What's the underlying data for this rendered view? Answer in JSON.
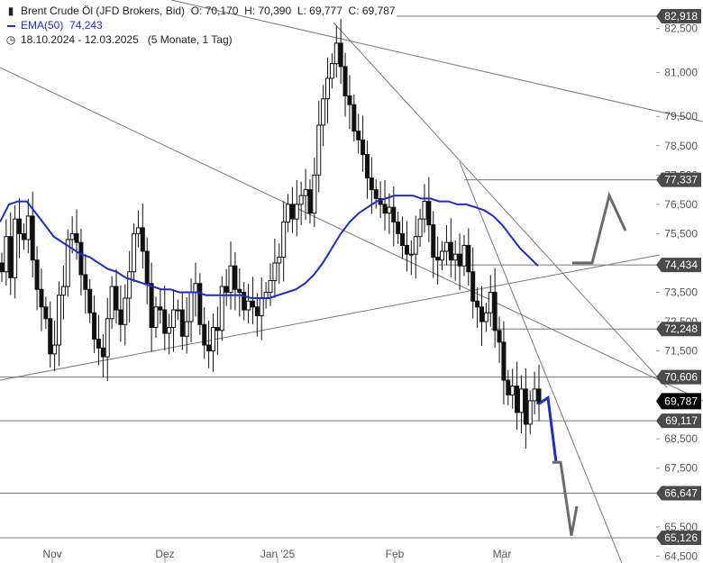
{
  "header": {
    "title": "Brent Crude Öl (JFD Brokers, Bid)",
    "open": "O: 70,170",
    "high": "H: 70,390",
    "low": "L: 69,777",
    "close": "C: 69,787",
    "ema_label": "EMA(50)",
    "ema_value": "74,243",
    "date_range": "18.10.2024 - 12.03.2025",
    "range_info": "(5 Monate, 1 Tag)"
  },
  "colors": {
    "candle": "#111111",
    "ema": "#1a2bd6",
    "trendline": "#777777",
    "projection_blue": "#1a2bd6",
    "projection_gray": "#6b6b6b",
    "badge_bg": "#4a4a4a",
    "last_badge_bg": "#000000"
  },
  "chart_data": {
    "type": "candlestick",
    "title": "Brent Crude Öl (JFD Brokers, Bid)",
    "xlabel": "",
    "ylabel": "",
    "ylim": [
      64.5,
      83.5
    ],
    "grid": false,
    "x_ticks": [
      "Nov",
      "Dez",
      "Jan '25",
      "Feb",
      "Mär"
    ],
    "y_ticks": [
      "82,500",
      "81,000",
      "79,500",
      "78,500",
      "77,500",
      "76,500",
      "75,500",
      "73,500",
      "72,500",
      "71,500",
      "68,500",
      "67,500",
      "65,500",
      "64,500"
    ],
    "price_levels": [
      {
        "value": 82.918,
        "label": "82,918"
      },
      {
        "value": 77.337,
        "label": "77,337"
      },
      {
        "value": 74.434,
        "label": "74,434"
      },
      {
        "value": 72.248,
        "label": "72,248"
      },
      {
        "value": 70.606,
        "label": "70,606"
      },
      {
        "value": 69.117,
        "label": "69,117"
      },
      {
        "value": 66.647,
        "label": "66,647"
      },
      {
        "value": 65.126,
        "label": "65,126"
      }
    ],
    "last_price": {
      "value": 69.787,
      "label": "69,787"
    },
    "closes": [
      74.2,
      75.4,
      74.0,
      76.0,
      75.5,
      75.3,
      76.1,
      74.6,
      73.6,
      73.0,
      72.6,
      71.4,
      71.7,
      73.4,
      73.7,
      75.3,
      75.5,
      75.2,
      74.1,
      73.6,
      72.8,
      71.9,
      71.6,
      71.3,
      72.6,
      73.7,
      72.9,
      72.4,
      73.3,
      74.2,
      75.5,
      75.7,
      74.9,
      73.8,
      72.3,
      73.0,
      72.9,
      72.1,
      72.3,
      72.9,
      72.9,
      72.0,
      72.5,
      73.5,
      73.8,
      72.4,
      71.7,
      71.5,
      72.3,
      72.2,
      73.7,
      73.5,
      74.4,
      73.6,
      73.5,
      72.9,
      73.2,
      73.0,
      72.7,
      73.3,
      73.5,
      73.9,
      74.5,
      74.7,
      75.9,
      76.5,
      76.0,
      76.5,
      76.8,
      77.0,
      76.2,
      77.5,
      79.2,
      80.1,
      80.8,
      81.3,
      82.0,
      81.2,
      80.2,
      79.9,
      79.0,
      78.7,
      78.2,
      77.4,
      77.0,
      76.7,
      76.5,
      76.2,
      76.4,
      75.9,
      75.5,
      75.1,
      74.8,
      74.8,
      75.4,
      76.0,
      76.6,
      75.8,
      74.7,
      74.6,
      74.9,
      75.2,
      74.6,
      74.8,
      74.4,
      75.1,
      74.2,
      73.2,
      73.0,
      72.5,
      72.8,
      73.5,
      72.2,
      71.8,
      70.5,
      70.0,
      70.3,
      69.4,
      70.2,
      69.0,
      69.8,
      70.2,
      69.7
    ],
    "ema50": [
      75.9,
      76.5,
      76.6,
      76.6,
      76.2,
      75.8,
      75.4,
      75.2,
      75.0,
      74.8,
      74.7,
      74.5,
      74.3,
      74.2,
      74.0,
      73.9,
      73.8,
      73.7,
      73.6,
      73.6,
      73.5,
      73.5,
      73.5,
      73.4,
      73.4,
      73.4,
      73.4,
      73.4,
      73.3,
      73.3,
      73.3,
      73.4,
      73.5,
      73.6,
      73.8,
      74.1,
      74.5,
      75.0,
      75.5,
      75.9,
      76.2,
      76.4,
      76.6,
      76.7,
      76.8,
      76.8,
      76.8,
      76.7,
      76.7,
      76.6,
      76.6,
      76.5,
      76.5,
      76.4,
      76.3,
      76.1,
      75.8,
      75.4,
      75.0,
      74.7,
      74.4
    ],
    "projections": [
      {
        "name": "",
        "color": "blue",
        "points": [
          [
            71,
            69.7
          ],
          [
            71.5,
            69.9
          ],
          [
            72.4,
            67.7
          ]
        ]
      },
      {
        "name": "",
        "color": "gray",
        "points": [
          [
            72.4,
            67.7
          ],
          [
            73.2,
            67.7
          ],
          [
            74.3,
            65.2
          ],
          [
            74.7,
            66.2
          ]
        ]
      },
      {
        "name": "",
        "color": "gray",
        "points": [
          [
            66,
            74.5
          ],
          [
            66.7,
            74.5
          ],
          [
            67.5,
            76.8
          ],
          [
            68.2,
            75.6
          ]
        ]
      }
    ]
  }
}
